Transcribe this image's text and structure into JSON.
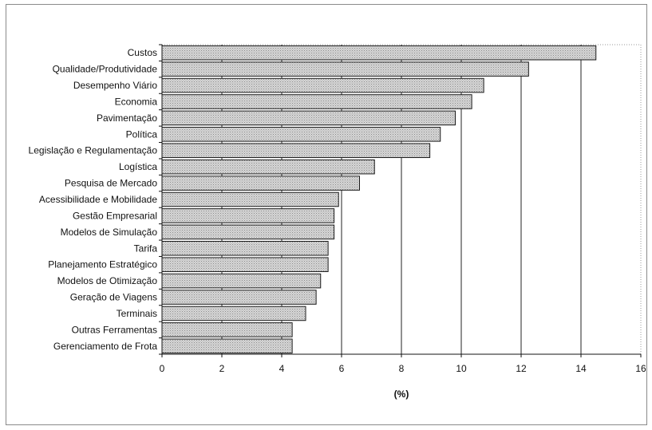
{
  "chart_data": {
    "type": "bar",
    "orientation": "horizontal",
    "categories": [
      "Custos",
      "Qualidade/Produtividade",
      "Desempenho Viário",
      "Economia",
      "Pavimentação",
      "Política",
      "Legislação e Regulamentação",
      "Logística",
      "Pesquisa de Mercado",
      "Acessibilidade e Mobilidade",
      "Gestão Empresarial",
      "Modelos de Simulação",
      "Tarifa",
      "Planejamento Estratégico",
      "Modelos de Otimização",
      "Geração de Viagens",
      "Terminais",
      "Outras Ferramentas",
      "Gerenciamento de Frota"
    ],
    "values": [
      14.5,
      12.25,
      10.75,
      10.35,
      9.8,
      9.3,
      8.95,
      7.1,
      6.6,
      5.9,
      5.75,
      5.75,
      5.55,
      5.55,
      5.3,
      5.15,
      4.8,
      4.35,
      4.35
    ],
    "xlim": [
      0,
      16
    ],
    "xticks": [
      0,
      2,
      4,
      6,
      8,
      10,
      12,
      14,
      16
    ],
    "xlabel": "(%)",
    "title": "",
    "ylabel": "",
    "grid": "vertical",
    "legend": "none",
    "colors": {
      "bar_fill": "#c4c4c4",
      "bar_stroke": "#1a1a1a",
      "grid": "#222222"
    }
  }
}
